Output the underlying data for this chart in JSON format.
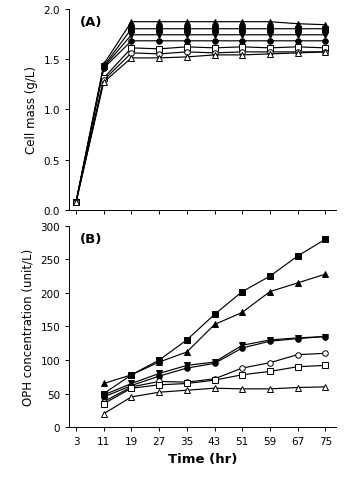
{
  "time_A": [
    3,
    11,
    19,
    27,
    35,
    43,
    51,
    59,
    67,
    75
  ],
  "series_A": [
    {
      "marker": "^",
      "filled": true,
      "values": [
        0.08,
        1.45,
        1.87,
        1.87,
        1.87,
        1.87,
        1.87,
        1.87,
        1.85,
        1.84
      ]
    },
    {
      "marker": "s",
      "filled": true,
      "values": [
        0.08,
        1.43,
        1.8,
        1.8,
        1.8,
        1.8,
        1.8,
        1.8,
        1.8,
        1.8
      ]
    },
    {
      "marker": "v",
      "filled": true,
      "values": [
        0.08,
        1.42,
        1.74,
        1.74,
        1.74,
        1.74,
        1.74,
        1.74,
        1.74,
        1.74
      ]
    },
    {
      "marker": "o",
      "filled": true,
      "values": [
        0.08,
        1.41,
        1.68,
        1.68,
        1.68,
        1.68,
        1.68,
        1.68,
        1.68,
        1.68
      ]
    },
    {
      "marker": "s",
      "filled": false,
      "values": [
        0.08,
        1.31,
        1.61,
        1.6,
        1.62,
        1.61,
        1.62,
        1.61,
        1.62,
        1.61
      ]
    },
    {
      "marker": "o",
      "filled": false,
      "values": [
        0.08,
        1.29,
        1.56,
        1.55,
        1.57,
        1.56,
        1.57,
        1.57,
        1.57,
        1.57
      ]
    },
    {
      "marker": "^",
      "filled": false,
      "values": [
        0.08,
        1.27,
        1.51,
        1.51,
        1.52,
        1.54,
        1.54,
        1.55,
        1.56,
        1.57
      ]
    }
  ],
  "time_B": [
    3,
    11,
    19,
    27,
    35,
    43,
    51,
    59,
    67,
    75
  ],
  "series_B": [
    {
      "marker": "s",
      "filled": true,
      "values": [
        null,
        50,
        78,
        100,
        130,
        168,
        202,
        225,
        255,
        280
      ]
    },
    {
      "marker": "^",
      "filled": true,
      "values": [
        null,
        65,
        78,
        97,
        112,
        153,
        171,
        202,
        215,
        228
      ]
    },
    {
      "marker": "v",
      "filled": true,
      "values": [
        null,
        48,
        65,
        80,
        92,
        97,
        122,
        130,
        133,
        135
      ]
    },
    {
      "marker": "o",
      "filled": true,
      "values": [
        null,
        45,
        62,
        76,
        88,
        95,
        118,
        128,
        132,
        135
      ]
    },
    {
      "marker": "o",
      "filled": false,
      "values": [
        null,
        38,
        60,
        68,
        67,
        72,
        88,
        96,
        108,
        110
      ]
    },
    {
      "marker": "s",
      "filled": false,
      "values": [
        null,
        35,
        58,
        63,
        65,
        70,
        78,
        83,
        90,
        92
      ]
    },
    {
      "marker": "^",
      "filled": false,
      "values": [
        null,
        20,
        45,
        52,
        55,
        58,
        57,
        57,
        59,
        60
      ]
    }
  ],
  "xlabel": "Time (hr)",
  "ylabel_A": "Cell mass (g/L)",
  "ylabel_B": "OPH concentration (unit/L)",
  "label_A": "(A)",
  "label_B": "(B)",
  "xticks": [
    3,
    11,
    19,
    27,
    35,
    43,
    51,
    59,
    67,
    75
  ],
  "ylim_A": [
    0.0,
    2.0
  ],
  "ylim_B": [
    0,
    300
  ],
  "yticks_A": [
    0.0,
    0.5,
    1.0,
    1.5,
    2.0
  ],
  "yticks_B": [
    0,
    50,
    100,
    150,
    200,
    250,
    300
  ],
  "figsize": [
    3.46,
    4.81
  ],
  "dpi": 100
}
